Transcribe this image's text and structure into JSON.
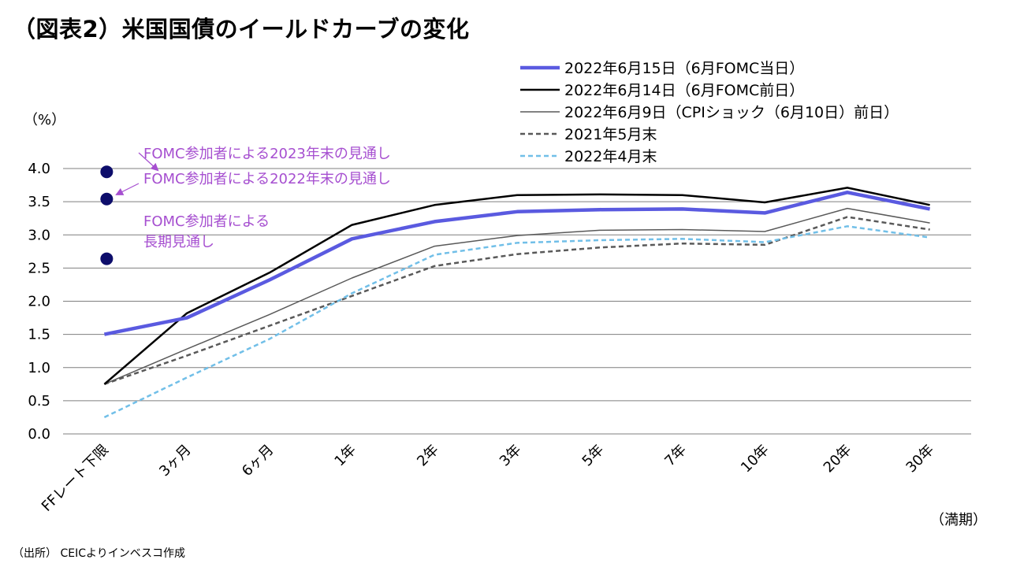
{
  "page": {
    "title": "（図表2）米国国債のイールドカーブの変化",
    "source": "（出所） CEICよりインベスコ作成"
  },
  "chart_data": {
    "type": "line",
    "title": "",
    "ylabel": "（%）",
    "xlabel": "（満期）",
    "ylim": [
      0,
      4.0
    ],
    "yticks": [
      "0.0",
      "0.5",
      "1.0",
      "1.5",
      "2.0",
      "2.5",
      "3.0",
      "3.5",
      "4.0"
    ],
    "categories": [
      "FFレート下限",
      "3ヶ月",
      "6ヶ月",
      "1年",
      "2年",
      "3年",
      "5年",
      "7年",
      "10年",
      "20年",
      "30年"
    ],
    "grid": true,
    "legend_position": "top-right",
    "series": [
      {
        "name": "2022年6月9日（CPIショック（6月10日）前日）",
        "color": "#595959",
        "style": "solid-thin",
        "values": [
          0.75,
          1.28,
          1.8,
          2.35,
          2.83,
          2.99,
          3.07,
          3.08,
          3.05,
          3.4,
          3.18
        ]
      },
      {
        "name": "2021年5月末",
        "color": "#595959",
        "style": "dashed",
        "values": [
          0.75,
          1.18,
          1.63,
          2.08,
          2.53,
          2.71,
          2.81,
          2.87,
          2.85,
          3.27,
          3.08
        ]
      },
      {
        "name": "2022年4月末",
        "color": "#71bfe8",
        "style": "dashed",
        "values": [
          0.25,
          0.85,
          1.43,
          2.12,
          2.7,
          2.88,
          2.92,
          2.94,
          2.89,
          3.13,
          2.96
        ]
      },
      {
        "name": "2022年6月14日（6月FOMC前日）",
        "color": "#000000",
        "style": "solid",
        "values": [
          0.75,
          1.82,
          2.43,
          3.15,
          3.45,
          3.6,
          3.61,
          3.6,
          3.49,
          3.71,
          3.45
        ]
      },
      {
        "name": "2022年6月15日（6月FOMC当日）",
        "color": "#5a5ae0",
        "style": "solid-thick",
        "values": [
          1.5,
          1.75,
          2.32,
          2.94,
          3.2,
          3.35,
          3.38,
          3.39,
          3.33,
          3.64,
          3.39
        ]
      }
    ],
    "legend_order": [
      4,
      3,
      0,
      1,
      2
    ],
    "fomc_points": [
      {
        "label": "FOMC参加者による2023年末の見通し",
        "value": 3.95
      },
      {
        "label": "FOMC参加者による2022年末の見通し",
        "value": 3.54
      },
      {
        "label": "FOMC参加者による長期見通し",
        "value": 2.64
      }
    ],
    "colors": {
      "fomc_point": "#0d0d6b",
      "annotation": "#a64fd0",
      "grid": "#7f7f7f"
    }
  }
}
